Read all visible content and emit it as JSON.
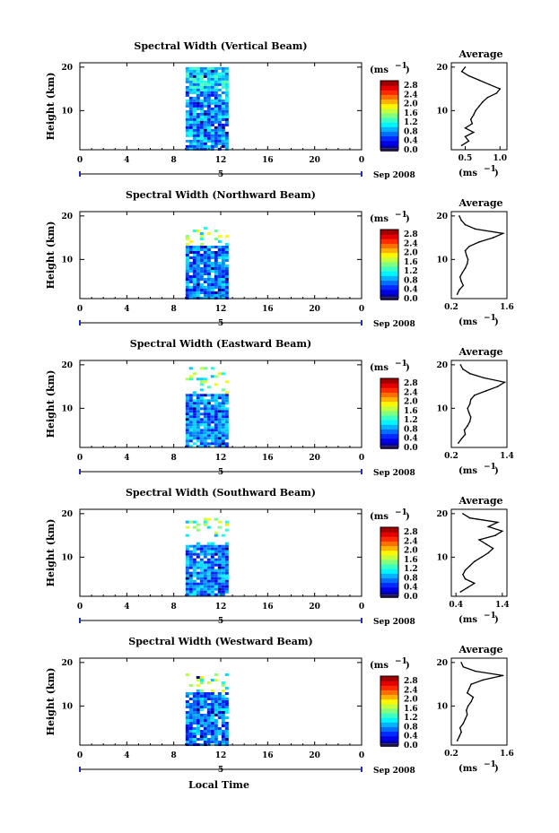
{
  "figure": {
    "xlabel": "Local Time",
    "height_label": "Height (km)",
    "unit_label": "(ms",
    "unit_sup": "−1",
    "average_title": "Average",
    "date_label": "Sep 2008",
    "day_label": "5"
  },
  "chart_data": [
    {
      "type": "heatmap",
      "title": "Spectral Width (Vertical Beam)",
      "xlabel": "Local Time",
      "ylabel": "Height (km)",
      "x_ticks": [
        "0",
        "4",
        "8",
        "12",
        "16",
        "20",
        "0"
      ],
      "xlim": [
        0,
        24
      ],
      "y_ticks": [
        "20",
        "10"
      ],
      "ylim": [
        1,
        21
      ],
      "data_time_range": [
        9,
        12.5
      ],
      "colorbar": {
        "label": "(ms−1)",
        "ticks": [
          "2.8",
          "2.4",
          "2.0",
          "1.6",
          "1.2",
          "0.8",
          "0.4",
          "0.0"
        ],
        "range": [
          0.0,
          3.0
        ]
      },
      "average_profile": {
        "title": "Average",
        "xlabel": "(ms−1)",
        "x_ticks": [
          "0.5",
          "1.0"
        ],
        "xlim": [
          0.3,
          1.1
        ],
        "ylim": [
          1,
          21
        ],
        "height": [
          2,
          3,
          4,
          5,
          6,
          7,
          8,
          9,
          10,
          11,
          12,
          13,
          14,
          15,
          16,
          17,
          18,
          19,
          20
        ],
        "value": [
          0.45,
          0.55,
          0.5,
          0.62,
          0.5,
          0.6,
          0.58,
          0.62,
          0.65,
          0.7,
          0.75,
          0.82,
          0.95,
          1.0,
          0.85,
          0.7,
          0.55,
          0.45,
          0.5
        ]
      }
    },
    {
      "type": "heatmap",
      "title": "Spectral Width (Northward Beam)",
      "xlabel": "Local Time",
      "ylabel": "Height (km)",
      "x_ticks": [
        "0",
        "4",
        "8",
        "12",
        "16",
        "20",
        "0"
      ],
      "xlim": [
        0,
        24
      ],
      "y_ticks": [
        "20",
        "10"
      ],
      "ylim": [
        1,
        21
      ],
      "data_time_range": [
        9,
        12.5
      ],
      "colorbar": {
        "label": "(ms−1)",
        "ticks": [
          "2.8",
          "2.4",
          "2.0",
          "1.6",
          "1.2",
          "0.8",
          "0.4",
          "0.0"
        ],
        "range": [
          0.0,
          3.0
        ]
      },
      "average_profile": {
        "title": "Average",
        "xlabel": "(ms−1)",
        "x_ticks": [
          "0.2",
          "1.6"
        ],
        "xlim": [
          0.2,
          1.6
        ],
        "ylim": [
          1,
          21
        ],
        "height": [
          2,
          3,
          4,
          5,
          6,
          7,
          8,
          9,
          10,
          11,
          12,
          13,
          14,
          15,
          16,
          17,
          18,
          19,
          20
        ],
        "value": [
          0.35,
          0.4,
          0.5,
          0.45,
          0.42,
          0.48,
          0.55,
          0.6,
          0.62,
          0.58,
          0.55,
          0.65,
          0.9,
          1.25,
          1.5,
          0.8,
          0.55,
          0.45,
          0.4
        ]
      }
    },
    {
      "type": "heatmap",
      "title": "Spectral Width (Eastward Beam)",
      "xlabel": "Local Time",
      "ylabel": "Height (km)",
      "x_ticks": [
        "0",
        "4",
        "8",
        "12",
        "16",
        "20",
        "0"
      ],
      "xlim": [
        0,
        24
      ],
      "y_ticks": [
        "20",
        "10"
      ],
      "ylim": [
        1,
        21
      ],
      "data_time_range": [
        9,
        12.5
      ],
      "colorbar": {
        "label": "(ms−1)",
        "ticks": [
          "2.8",
          "2.4",
          "2.0",
          "1.6",
          "1.2",
          "0.8",
          "0.4",
          "0.0"
        ],
        "range": [
          0.0,
          3.0
        ]
      },
      "average_profile": {
        "title": "Average",
        "xlabel": "(ms−1)",
        "x_ticks": [
          "0.2",
          "1.4"
        ],
        "xlim": [
          0.2,
          1.4
        ],
        "ylim": [
          1,
          21
        ],
        "height": [
          2,
          3,
          4,
          5,
          6,
          7,
          8,
          9,
          10,
          11,
          12,
          13,
          14,
          15,
          16,
          17,
          18,
          19,
          20
        ],
        "value": [
          0.35,
          0.42,
          0.5,
          0.48,
          0.55,
          0.6,
          0.62,
          0.58,
          0.55,
          0.6,
          0.62,
          0.7,
          0.95,
          1.2,
          1.35,
          0.9,
          0.6,
          0.45,
          0.4
        ]
      }
    },
    {
      "type": "heatmap",
      "title": "Spectral Width (Southward Beam)",
      "xlabel": "Local Time",
      "ylabel": "Height (km)",
      "x_ticks": [
        "0",
        "4",
        "8",
        "12",
        "16",
        "20",
        "0"
      ],
      "xlim": [
        0,
        24
      ],
      "y_ticks": [
        "20",
        "10"
      ],
      "ylim": [
        1,
        21
      ],
      "data_time_range": [
        9,
        12.5
      ],
      "colorbar": {
        "label": "(ms−1)",
        "ticks": [
          "2.8",
          "2.4",
          "2.0",
          "1.6",
          "1.2",
          "0.8",
          "0.4",
          "0.0"
        ],
        "range": [
          0.0,
          3.0
        ]
      },
      "average_profile": {
        "title": "Average",
        "xlabel": "(ms−1)",
        "x_ticks": [
          "0.4",
          "1.4"
        ],
        "xlim": [
          0.3,
          1.5
        ],
        "ylim": [
          1,
          21
        ],
        "height": [
          2,
          3,
          4,
          5,
          6,
          7,
          8,
          9,
          10,
          11,
          12,
          13,
          14,
          15,
          16,
          17,
          18,
          19,
          20
        ],
        "value": [
          0.5,
          0.65,
          0.8,
          0.6,
          0.55,
          0.6,
          0.7,
          0.8,
          0.95,
          1.1,
          1.2,
          1.05,
          0.9,
          1.25,
          1.4,
          1.1,
          1.3,
          0.7,
          0.55
        ]
      }
    },
    {
      "type": "heatmap",
      "title": "Spectral Width (Westward Beam)",
      "xlabel": "Local Time",
      "ylabel": "Height (km)",
      "x_ticks": [
        "0",
        "4",
        "8",
        "12",
        "16",
        "20",
        "0"
      ],
      "xlim": [
        0,
        24
      ],
      "y_ticks": [
        "20",
        "10"
      ],
      "ylim": [
        1,
        21
      ],
      "data_time_range": [
        9,
        12.5
      ],
      "colorbar": {
        "label": "(ms−1)",
        "ticks": [
          "2.8",
          "2.4",
          "2.0",
          "1.6",
          "1.2",
          "0.8",
          "0.4",
          "0.0"
        ],
        "range": [
          0.0,
          3.0
        ]
      },
      "average_profile": {
        "title": "Average",
        "xlabel": "(ms−1)",
        "x_ticks": [
          "0.2",
          "1.6"
        ],
        "xlim": [
          0.2,
          1.6
        ],
        "ylim": [
          1,
          21
        ],
        "height": [
          2,
          3,
          4,
          5,
          6,
          7,
          8,
          9,
          10,
          11,
          12,
          13,
          14,
          15,
          16,
          17,
          18,
          19,
          20
        ],
        "value": [
          0.35,
          0.4,
          0.45,
          0.42,
          0.5,
          0.55,
          0.6,
          0.58,
          0.62,
          0.7,
          0.75,
          0.6,
          0.65,
          0.7,
          1.0,
          1.5,
          0.8,
          0.5,
          0.45
        ]
      }
    }
  ]
}
